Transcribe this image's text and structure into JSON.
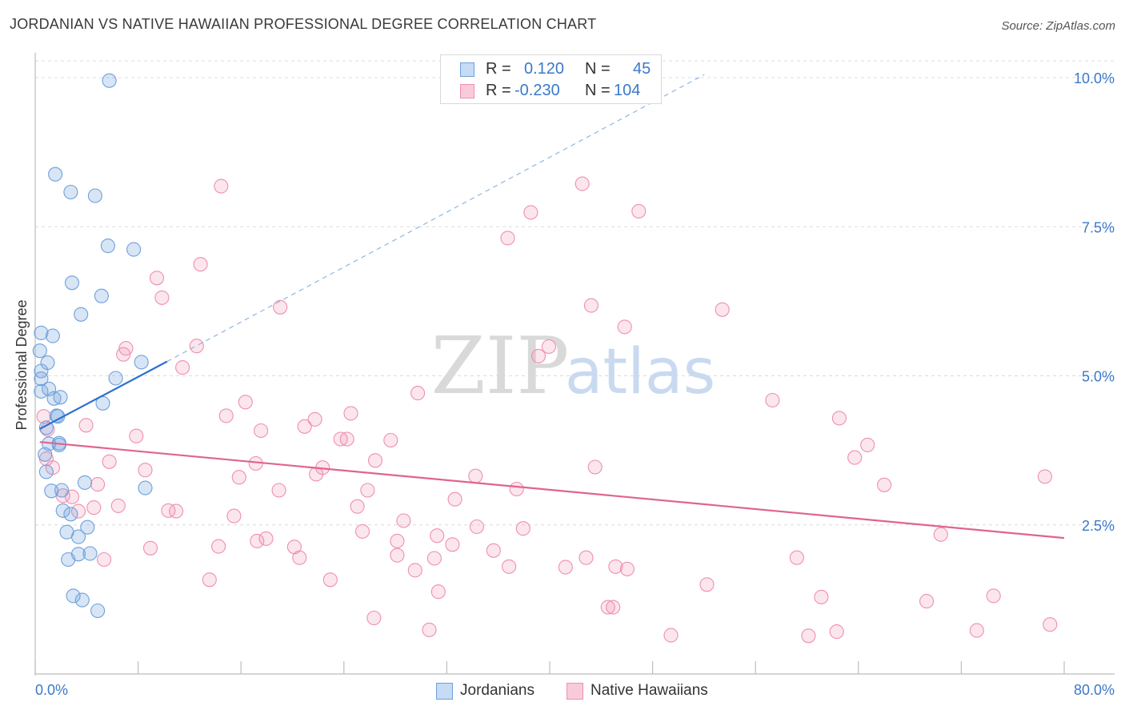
{
  "header": {
    "title": "JORDANIAN VS NATIVE HAWAIIAN PROFESSIONAL DEGREE CORRELATION CHART",
    "source": "Source: ZipAtlas.com"
  },
  "legend": {
    "r_label": "R =",
    "n_label": "N =",
    "rows": [
      {
        "r": "0.120",
        "n": "45"
      },
      {
        "r": "-0.230",
        "n": "104"
      }
    ]
  },
  "watermark": {
    "zip": "ZIP",
    "atlas": "atlas"
  },
  "chart_data": {
    "type": "scatter",
    "title": "JORDANIAN VS NATIVE HAWAIIAN PROFESSIONAL DEGREE CORRELATION CHART",
    "xlabel": "",
    "ylabel": "Professional Degree",
    "xlim": [
      0,
      80
    ],
    "ylim": [
      0,
      10.5
    ],
    "x_tick_labels": [
      "0.0%",
      "80.0%"
    ],
    "y_ticks": [
      2.5,
      5.0,
      7.5,
      10.0
    ],
    "y_tick_labels": [
      "2.5%",
      "5.0%",
      "7.5%",
      "10.0%"
    ],
    "grid": true,
    "legend_position": "top-center",
    "colors": {
      "Jordanians": "#6fa0dc",
      "Native Hawaiians": "#ef8fae",
      "jordan_line": "#2f6fcf",
      "hawaii_line": "#e0648e",
      "axis_text": "#3b78c9"
    },
    "series": [
      {
        "name": "Jordanians",
        "r": 0.12,
        "n": 45,
        "trend": {
          "x": [
            0.3,
            10.2
          ],
          "y": [
            4.11,
            5.24
          ]
        },
        "trend_extension": {
          "x": [
            10.2,
            52
          ],
          "y": [
            5.24,
            10.05
          ]
        },
        "points": [
          [
            5.7,
            9.95
          ],
          [
            1.5,
            8.38
          ],
          [
            2.7,
            8.08
          ],
          [
            4.6,
            8.02
          ],
          [
            5.6,
            7.18
          ],
          [
            7.6,
            7.12
          ],
          [
            2.8,
            6.56
          ],
          [
            5.1,
            6.34
          ],
          [
            3.5,
            6.03
          ],
          [
            0.4,
            5.72
          ],
          [
            1.3,
            5.67
          ],
          [
            0.3,
            5.42
          ],
          [
            0.9,
            5.22
          ],
          [
            0.4,
            5.08
          ],
          [
            0.4,
            4.95
          ],
          [
            6.2,
            4.96
          ],
          [
            8.2,
            5.23
          ],
          [
            0.4,
            4.74
          ],
          [
            1.0,
            4.78
          ],
          [
            1.4,
            4.62
          ],
          [
            1.9,
            4.64
          ],
          [
            5.2,
            4.54
          ],
          [
            1.6,
            4.33
          ],
          [
            1.7,
            4.32
          ],
          [
            0.8,
            4.13
          ],
          [
            1.0,
            3.86
          ],
          [
            1.8,
            3.84
          ],
          [
            1.8,
            3.87
          ],
          [
            0.7,
            3.68
          ],
          [
            0.8,
            3.39
          ],
          [
            3.8,
            3.21
          ],
          [
            8.5,
            3.12
          ],
          [
            1.2,
            3.07
          ],
          [
            2.0,
            3.08
          ],
          [
            2.1,
            2.74
          ],
          [
            2.7,
            2.68
          ],
          [
            4.0,
            2.46
          ],
          [
            2.4,
            2.38
          ],
          [
            3.3,
            2.3
          ],
          [
            4.2,
            2.02
          ],
          [
            3.3,
            2.01
          ],
          [
            2.5,
            1.92
          ],
          [
            2.9,
            1.31
          ],
          [
            3.6,
            1.24
          ],
          [
            4.8,
            1.06
          ]
        ]
      },
      {
        "name": "Native Hawaiians",
        "r": -0.23,
        "n": 104,
        "trend": {
          "x": [
            0.3,
            80
          ],
          "y": [
            3.89,
            2.28
          ]
        },
        "points": [
          [
            14.4,
            8.18
          ],
          [
            42.5,
            8.22
          ],
          [
            38.5,
            7.74
          ],
          [
            46.9,
            7.76
          ],
          [
            36.7,
            7.31
          ],
          [
            12.8,
            6.87
          ],
          [
            9.4,
            6.64
          ],
          [
            9.8,
            6.31
          ],
          [
            19.0,
            6.15
          ],
          [
            43.2,
            6.18
          ],
          [
            53.4,
            6.11
          ],
          [
            45.8,
            5.82
          ],
          [
            12.5,
            5.5
          ],
          [
            7.0,
            5.46
          ],
          [
            6.8,
            5.36
          ],
          [
            39.9,
            5.49
          ],
          [
            39.1,
            5.33
          ],
          [
            11.4,
            5.14
          ],
          [
            29.7,
            4.71
          ],
          [
            16.3,
            4.56
          ],
          [
            57.3,
            4.59
          ],
          [
            24.5,
            4.37
          ],
          [
            14.8,
            4.33
          ],
          [
            21.7,
            4.27
          ],
          [
            62.5,
            4.29
          ],
          [
            20.9,
            4.15
          ],
          [
            17.5,
            4.08
          ],
          [
            3.9,
            4.17
          ],
          [
            7.8,
            3.99
          ],
          [
            23.7,
            3.94
          ],
          [
            24.2,
            3.94
          ],
          [
            27.6,
            3.92
          ],
          [
            64.7,
            3.84
          ],
          [
            0.8,
            3.61
          ],
          [
            5.7,
            3.56
          ],
          [
            17.1,
            3.53
          ],
          [
            26.4,
            3.58
          ],
          [
            63.7,
            3.63
          ],
          [
            22.3,
            3.46
          ],
          [
            43.5,
            3.47
          ],
          [
            1.3,
            3.46
          ],
          [
            8.5,
            3.42
          ],
          [
            15.8,
            3.3
          ],
          [
            21.8,
            3.35
          ],
          [
            34.2,
            3.32
          ],
          [
            78.5,
            3.31
          ],
          [
            4.8,
            3.18
          ],
          [
            18.9,
            3.08
          ],
          [
            25.8,
            3.08
          ],
          [
            37.4,
            3.1
          ],
          [
            66.0,
            3.17
          ],
          [
            2.1,
            2.99
          ],
          [
            2.8,
            2.97
          ],
          [
            32.6,
            2.93
          ],
          [
            6.4,
            2.82
          ],
          [
            25.0,
            2.81
          ],
          [
            4.5,
            2.79
          ],
          [
            10.3,
            2.74
          ],
          [
            10.9,
            2.73
          ],
          [
            3.3,
            2.73
          ],
          [
            15.4,
            2.65
          ],
          [
            28.6,
            2.57
          ],
          [
            34.3,
            2.47
          ],
          [
            25.4,
            2.39
          ],
          [
            37.9,
            2.44
          ],
          [
            70.4,
            2.34
          ],
          [
            17.9,
            2.27
          ],
          [
            31.2,
            2.32
          ],
          [
            17.2,
            2.23
          ],
          [
            28.1,
            2.23
          ],
          [
            20.1,
            2.13
          ],
          [
            14.2,
            2.14
          ],
          [
            8.9,
            2.11
          ],
          [
            32.4,
            2.17
          ],
          [
            35.6,
            2.07
          ],
          [
            28.1,
            1.99
          ],
          [
            20.5,
            1.95
          ],
          [
            31.0,
            1.94
          ],
          [
            42.8,
            1.95
          ],
          [
            59.2,
            1.95
          ],
          [
            5.3,
            1.92
          ],
          [
            29.5,
            1.74
          ],
          [
            36.8,
            1.8
          ],
          [
            41.2,
            1.79
          ],
          [
            45.1,
            1.8
          ],
          [
            46.0,
            1.76
          ],
          [
            13.5,
            1.58
          ],
          [
            22.9,
            1.58
          ],
          [
            31.3,
            1.38
          ],
          [
            52.2,
            1.5
          ],
          [
            61.1,
            1.29
          ],
          [
            74.5,
            1.31
          ],
          [
            69.3,
            1.22
          ],
          [
            44.5,
            1.12
          ],
          [
            44.9,
            1.12
          ],
          [
            26.3,
            0.94
          ],
          [
            30.6,
            0.74
          ],
          [
            49.4,
            0.65
          ],
          [
            60.1,
            0.64
          ],
          [
            62.3,
            0.71
          ],
          [
            73.2,
            0.73
          ],
          [
            78.9,
            0.83
          ],
          [
            0.6,
            4.32
          ],
          [
            0.9,
            4.1
          ]
        ]
      }
    ]
  },
  "axes": {
    "x_tick_labels": [
      "0.0%",
      "80.0%"
    ],
    "y_tick_labels": [
      "2.5%",
      "5.0%",
      "7.5%",
      "10.0%"
    ],
    "ylabel": "Professional Degree"
  },
  "bottom_legend": [
    "Jordanians",
    "Native Hawaiians"
  ]
}
